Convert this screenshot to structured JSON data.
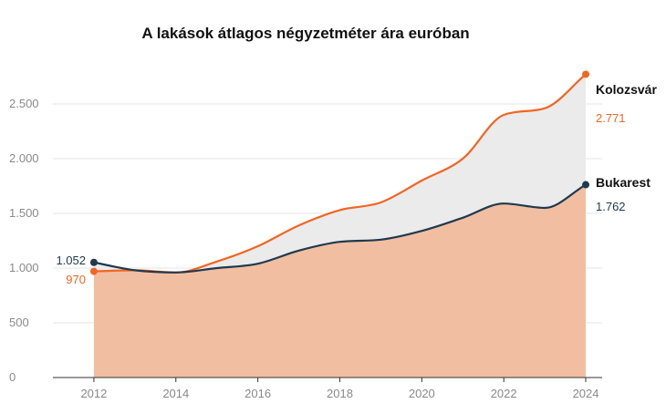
{
  "chart_data": {
    "type": "area",
    "title": "A lakások átlagos négyzetméter ára euróban",
    "xlabel": "",
    "ylabel": "",
    "x": [
      2012,
      2013,
      2014,
      2015,
      2016,
      2017,
      2018,
      2019,
      2020,
      2021,
      2022,
      2023,
      2024
    ],
    "x_ticks": [
      2012,
      2014,
      2016,
      2018,
      2020,
      2022,
      2024
    ],
    "y_ticks": [
      0,
      500,
      1000,
      1500,
      2000,
      2500
    ],
    "y_tick_labels": [
      "0",
      "500",
      "1.000",
      "1.500",
      "2.000",
      "2.500"
    ],
    "xlim": [
      2011,
      2024.4
    ],
    "ylim": [
      0,
      2950
    ],
    "grid": true,
    "series": [
      {
        "name": "Kolozsvár",
        "color": "#f26522",
        "values": [
          970,
          980,
          960,
          1060,
          1200,
          1390,
          1530,
          1600,
          1800,
          2000,
          2400,
          2460,
          2771
        ],
        "start_label": "970",
        "end_label": "2.771"
      },
      {
        "name": "Bukarest",
        "color": "#1f3a4d",
        "values": [
          1052,
          980,
          960,
          1000,
          1040,
          1160,
          1240,
          1260,
          1340,
          1460,
          1590,
          1550,
          1762
        ],
        "start_label": "1.052",
        "end_label": "1.762"
      }
    ],
    "fill_between_color": "#ebebeb",
    "fill_base_color": "#f2bea2"
  }
}
